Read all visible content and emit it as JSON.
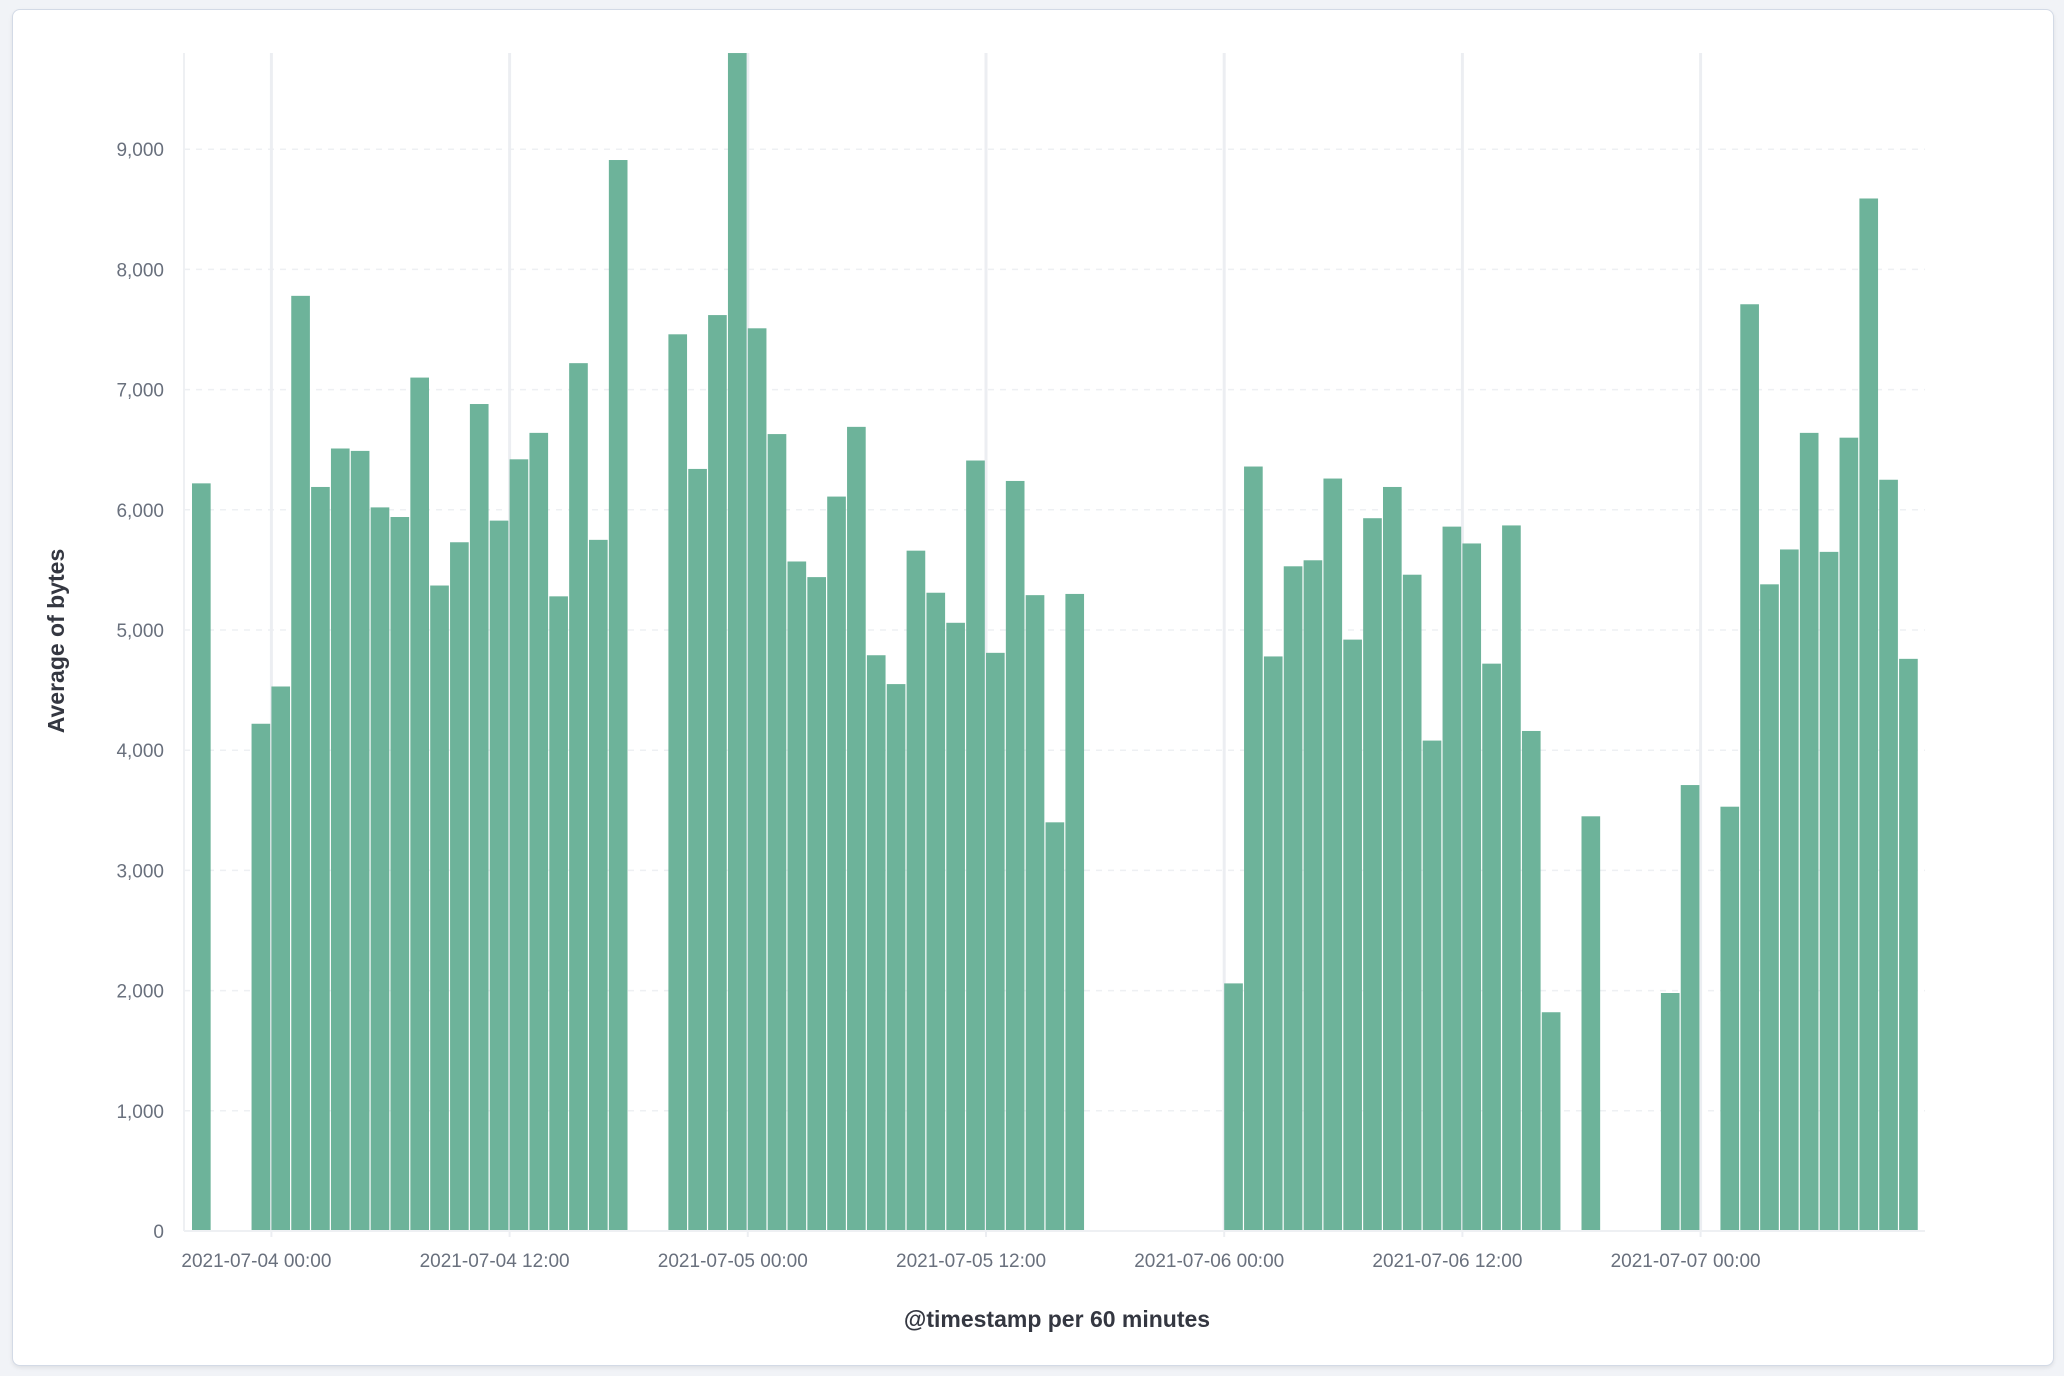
{
  "chart_data": {
    "type": "bar",
    "xlabel": "@timestamp per 60 minutes",
    "ylabel": "Average of bytes",
    "ylim": [
      0,
      9800
    ],
    "yticks": [
      "0",
      "1,000",
      "2,000",
      "3,000",
      "4,000",
      "5,000",
      "6,000",
      "7,000",
      "8,000",
      "9,000"
    ],
    "xtick_labels": [
      "2021-07-04 00:00",
      "2021-07-04 12:00",
      "2021-07-05 00:00",
      "2021-07-05 12:00",
      "2021-07-06 00:00",
      "2021-07-06 12:00",
      "2021-07-07 00:00"
    ],
    "xlim": [
      "2021-07-03 20:00",
      "2021-07-07 11:00"
    ],
    "interval_minutes": 60,
    "bar_color": "#6db39a",
    "grid": {
      "horizontal": "dashed",
      "vertical": "at major ticks"
    },
    "series": [
      {
        "points": [
          [
            "2021-07-03 20:00",
            6220
          ],
          [
            "2021-07-03 23:00",
            4220
          ],
          [
            "2021-07-04 00:00",
            4530
          ],
          [
            "2021-07-04 01:00",
            7780
          ],
          [
            "2021-07-04 02:00",
            6190
          ],
          [
            "2021-07-04 03:00",
            6510
          ],
          [
            "2021-07-04 04:00",
            6490
          ],
          [
            "2021-07-04 05:00",
            6020
          ],
          [
            "2021-07-04 06:00",
            5940
          ],
          [
            "2021-07-04 07:00",
            7100
          ],
          [
            "2021-07-04 08:00",
            5370
          ],
          [
            "2021-07-04 09:00",
            5730
          ],
          [
            "2021-07-04 10:00",
            6880
          ],
          [
            "2021-07-04 11:00",
            5910
          ],
          [
            "2021-07-04 12:00",
            6420
          ],
          [
            "2021-07-04 13:00",
            6640
          ],
          [
            "2021-07-04 14:00",
            5280
          ],
          [
            "2021-07-04 15:00",
            7220
          ],
          [
            "2021-07-04 16:00",
            5750
          ],
          [
            "2021-07-04 17:00",
            8910
          ],
          [
            "2021-07-04 20:00",
            7460
          ],
          [
            "2021-07-04 21:00",
            6340
          ],
          [
            "2021-07-04 22:00",
            7620
          ],
          [
            "2021-07-04 23:00",
            9800
          ],
          [
            "2021-07-05 00:00",
            7510
          ],
          [
            "2021-07-05 01:00",
            6630
          ],
          [
            "2021-07-05 02:00",
            5570
          ],
          [
            "2021-07-05 03:00",
            5440
          ],
          [
            "2021-07-05 04:00",
            6110
          ],
          [
            "2021-07-05 05:00",
            6690
          ],
          [
            "2021-07-05 06:00",
            4790
          ],
          [
            "2021-07-05 07:00",
            4550
          ],
          [
            "2021-07-05 08:00",
            5660
          ],
          [
            "2021-07-05 09:00",
            5310
          ],
          [
            "2021-07-05 10:00",
            5060
          ],
          [
            "2021-07-05 11:00",
            6410
          ],
          [
            "2021-07-05 12:00",
            4810
          ],
          [
            "2021-07-05 13:00",
            6240
          ],
          [
            "2021-07-05 14:00",
            5290
          ],
          [
            "2021-07-05 15:00",
            3400
          ],
          [
            "2021-07-05 16:00",
            5300
          ],
          [
            "2021-07-06 00:00",
            2060
          ],
          [
            "2021-07-06 01:00",
            6360
          ],
          [
            "2021-07-06 02:00",
            4780
          ],
          [
            "2021-07-06 03:00",
            5530
          ],
          [
            "2021-07-06 04:00",
            5580
          ],
          [
            "2021-07-06 05:00",
            6260
          ],
          [
            "2021-07-06 06:00",
            4920
          ],
          [
            "2021-07-06 07:00",
            5930
          ],
          [
            "2021-07-06 08:00",
            6190
          ],
          [
            "2021-07-06 09:00",
            5460
          ],
          [
            "2021-07-06 10:00",
            4080
          ],
          [
            "2021-07-06 11:00",
            5860
          ],
          [
            "2021-07-06 12:00",
            5720
          ],
          [
            "2021-07-06 13:00",
            4720
          ],
          [
            "2021-07-06 14:00",
            5870
          ],
          [
            "2021-07-06 15:00",
            4160
          ],
          [
            "2021-07-06 16:00",
            1820
          ],
          [
            "2021-07-06 18:00",
            3450
          ],
          [
            "2021-07-06 22:00",
            1980
          ],
          [
            "2021-07-06 23:00",
            3710
          ],
          [
            "2021-07-07 01:00",
            3530
          ],
          [
            "2021-07-07 02:00",
            7710
          ],
          [
            "2021-07-07 03:00",
            5380
          ],
          [
            "2021-07-07 04:00",
            5670
          ],
          [
            "2021-07-07 05:00",
            6640
          ],
          [
            "2021-07-07 06:00",
            5650
          ],
          [
            "2021-07-07 07:00",
            6600
          ],
          [
            "2021-07-07 08:00",
            8590
          ],
          [
            "2021-07-07 09:00",
            6250
          ],
          [
            "2021-07-07 10:00",
            4760
          ]
        ]
      }
    ]
  }
}
